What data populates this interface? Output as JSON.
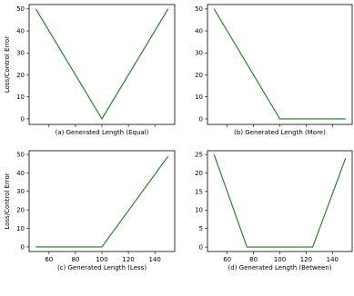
{
  "chart_data": [
    {
      "type": "line",
      "caption": "(a) Generated Length (Equal)",
      "ylabel": "Loss/Control Error",
      "xlim": [
        45,
        155
      ],
      "ylim": [
        -2.5,
        52
      ],
      "xticks": [
        60,
        80,
        100,
        120,
        140
      ],
      "yticks": [
        0,
        10,
        20,
        30,
        40,
        50
      ],
      "show_xtick_labels": false,
      "color": "#1a7a1a",
      "series": [
        {
          "x": [
            50,
            100,
            150
          ],
          "y": [
            50,
            0,
            50
          ]
        }
      ]
    },
    {
      "type": "line",
      "caption": "(b) Generated Length (More)",
      "ylabel": "",
      "xlim": [
        45,
        155
      ],
      "ylim": [
        -2.5,
        52
      ],
      "xticks": [
        60,
        80,
        100,
        120,
        140
      ],
      "yticks": [
        0,
        10,
        20,
        30,
        40,
        50
      ],
      "show_xtick_labels": false,
      "color": "#1a7a1a",
      "series": [
        {
          "x": [
            50,
            100,
            150
          ],
          "y": [
            50,
            0,
            0
          ]
        }
      ]
    },
    {
      "type": "line",
      "caption": "(c) Generated Length (Less)",
      "ylabel": "Loss/Control Error",
      "xlim": [
        45,
        155
      ],
      "ylim": [
        -2.5,
        52
      ],
      "xticks": [
        60,
        80,
        100,
        120,
        140
      ],
      "yticks": [
        0,
        10,
        20,
        30,
        40,
        50
      ],
      "show_xtick_labels": true,
      "color": "#1a7a1a",
      "series": [
        {
          "x": [
            50,
            100,
            150
          ],
          "y": [
            0,
            0,
            49
          ]
        }
      ]
    },
    {
      "type": "line",
      "caption": "(d) Generated Length (Between)",
      "ylabel": "",
      "xlim": [
        45,
        155
      ],
      "ylim": [
        -1.2,
        26
      ],
      "xticks": [
        60,
        80,
        100,
        120,
        140
      ],
      "yticks": [
        0,
        5,
        10,
        15,
        20,
        25
      ],
      "show_xtick_labels": true,
      "color": "#1a7a1a",
      "series": [
        {
          "x": [
            50,
            75,
            125,
            150
          ],
          "y": [
            25,
            0,
            0,
            24
          ]
        }
      ]
    }
  ]
}
